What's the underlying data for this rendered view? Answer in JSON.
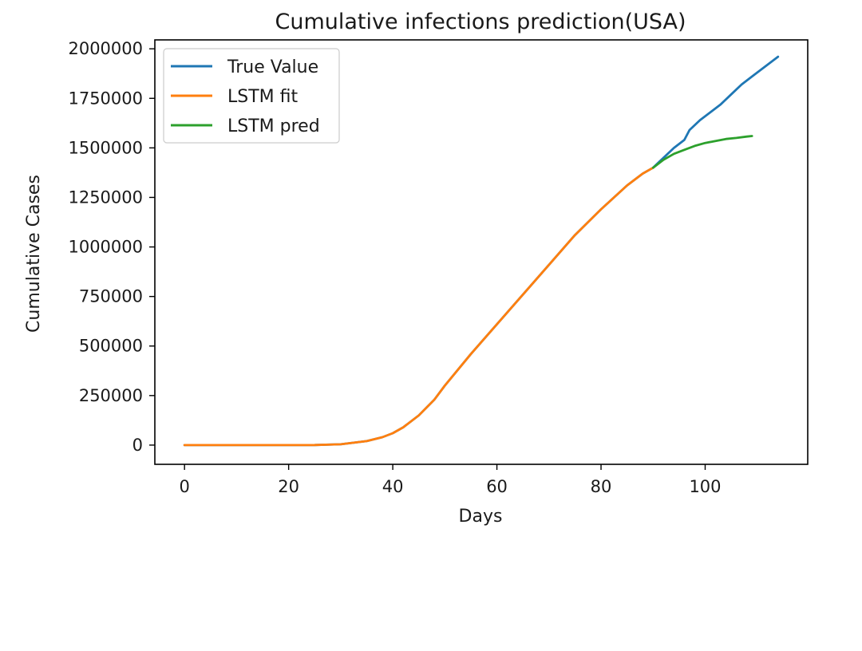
{
  "chart_data": {
    "type": "line",
    "title": "Cumulative infections prediction(USA)",
    "xlabel": "Days",
    "ylabel": "Cumulative Cases",
    "xlim": [
      -5.7,
      119.7
    ],
    "ylim": [
      -97000,
      2045000
    ],
    "xticks": [
      0,
      20,
      40,
      60,
      80,
      100
    ],
    "xtick_labels": [
      "0",
      "20",
      "40",
      "60",
      "80",
      "100"
    ],
    "yticks": [
      0,
      250000,
      500000,
      750000,
      1000000,
      1250000,
      1500000,
      1750000,
      2000000
    ],
    "ytick_labels": [
      "0",
      "250000",
      "500000",
      "750000",
      "1000000",
      "1250000",
      "1500000",
      "1750000",
      "2000000"
    ],
    "grid": false,
    "legend_position": "top-left",
    "series": [
      {
        "name": "True Value",
        "color": "#1f77b4",
        "x": [
          0,
          10,
          20,
          25,
          30,
          35,
          38,
          40,
          42,
          45,
          48,
          50,
          55,
          60,
          65,
          70,
          75,
          80,
          85,
          88,
          90,
          92,
          94,
          96,
          97,
          99,
          101,
          103,
          105,
          107,
          109,
          111,
          112,
          114
        ],
        "y": [
          0,
          0,
          0,
          500,
          4000,
          20000,
          40000,
          60000,
          90000,
          150000,
          230000,
          300000,
          460000,
          610000,
          760000,
          910000,
          1060000,
          1190000,
          1310000,
          1370000,
          1400000,
          1450000,
          1500000,
          1540000,
          1590000,
          1640000,
          1680000,
          1720000,
          1770000,
          1820000,
          1860000,
          1900000,
          1920000,
          1960000
        ]
      },
      {
        "name": "LSTM fit",
        "color": "#ff7f0e",
        "x": [
          0,
          10,
          20,
          25,
          30,
          35,
          38,
          40,
          42,
          45,
          48,
          50,
          55,
          60,
          65,
          70,
          75,
          80,
          85,
          88,
          90
        ],
        "y": [
          0,
          0,
          0,
          500,
          4000,
          20000,
          40000,
          60000,
          90000,
          150000,
          230000,
          300000,
          460000,
          610000,
          760000,
          910000,
          1060000,
          1190000,
          1310000,
          1370000,
          1400000
        ]
      },
      {
        "name": "LSTM pred",
        "color": "#2ca02c",
        "x": [
          90,
          92,
          94,
          96,
          98,
          100,
          102,
          104,
          106,
          108,
          109
        ],
        "y": [
          1400000,
          1440000,
          1470000,
          1490000,
          1510000,
          1525000,
          1535000,
          1545000,
          1550000,
          1557000,
          1560000
        ]
      }
    ]
  }
}
